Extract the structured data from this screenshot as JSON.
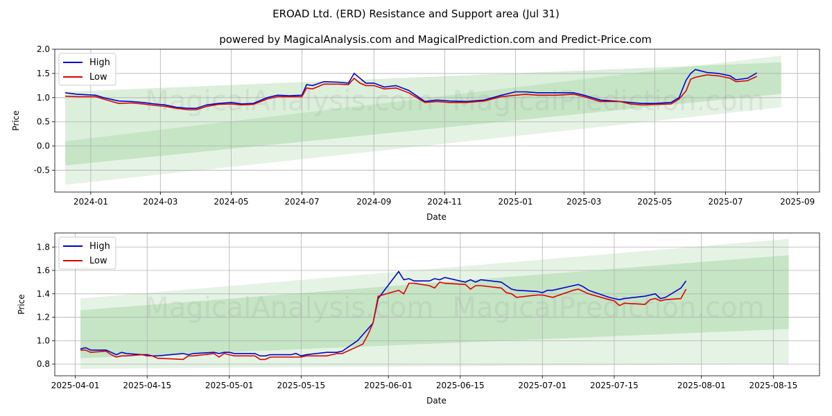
{
  "title": "EROAD Ltd. (ERD) Resistance and Support area (Jul 31)",
  "subtitle": "powered by MagicalAnalysis.com and MagicalPrediction.com and Predict-Price.com",
  "watermarks": [
    "MagicalAnalysis.com",
    "MagicalPrediction.com"
  ],
  "colors": {
    "high": "#0000cc",
    "low": "#dd0000",
    "band": "#2ca02c",
    "grid": "#b0b0b0"
  },
  "chart_data": [
    {
      "type": "line",
      "xlabel": "Date",
      "ylabel": "Price",
      "xlim": [
        "2023-12-01",
        "2025-09-20"
      ],
      "ylim": [
        -0.95,
        2.0
      ],
      "x_ticks": [
        "2024-01",
        "2024-03",
        "2024-05",
        "2024-07",
        "2024-09",
        "2024-11",
        "2025-01",
        "2025-03",
        "2025-05",
        "2025-07",
        "2025-09"
      ],
      "y_ticks": [
        -0.5,
        0.0,
        0.5,
        1.0,
        1.5,
        2.0
      ],
      "grid": true,
      "legend": "top-left",
      "bands": [
        {
          "x": [
            "2023-12-10",
            "2025-08-18"
          ],
          "lower": [
            -0.8,
            0.8
          ],
          "upper": [
            0.1,
            1.87
          ]
        },
        {
          "x": [
            "2023-12-10",
            "2025-08-18"
          ],
          "lower": [
            -0.4,
            1.08
          ],
          "upper": [
            1.12,
            1.73
          ]
        }
      ],
      "series": [
        {
          "name": "High",
          "x": [
            "2023-12-10",
            "2023-12-20",
            "2024-01-05",
            "2024-01-12",
            "2024-01-25",
            "2024-02-05",
            "2024-02-15",
            "2024-02-25",
            "2024-03-05",
            "2024-03-15",
            "2024-03-25",
            "2024-04-01",
            "2024-04-10",
            "2024-04-20",
            "2024-05-01",
            "2024-05-10",
            "2024-05-20",
            "2024-06-01",
            "2024-06-10",
            "2024-06-20",
            "2024-07-01",
            "2024-07-05",
            "2024-07-10",
            "2024-07-20",
            "2024-08-01",
            "2024-08-10",
            "2024-08-15",
            "2024-08-20",
            "2024-08-25",
            "2024-09-01",
            "2024-09-10",
            "2024-09-20",
            "2024-10-01",
            "2024-10-10",
            "2024-10-15",
            "2024-10-25",
            "2024-11-05",
            "2024-11-20",
            "2024-12-05",
            "2024-12-20",
            "2025-01-01",
            "2025-01-10",
            "2025-01-20",
            "2025-02-05",
            "2025-02-20",
            "2025-03-01",
            "2025-03-15",
            "2025-04-01",
            "2025-04-10",
            "2025-04-20",
            "2025-05-01",
            "2025-05-15",
            "2025-05-22",
            "2025-05-28",
            "2025-06-01",
            "2025-06-05",
            "2025-06-15",
            "2025-06-25",
            "2025-07-05",
            "2025-07-10",
            "2025-07-20",
            "2025-07-28"
          ],
          "values": [
            1.1,
            1.07,
            1.05,
            1.0,
            0.93,
            0.92,
            0.9,
            0.87,
            0.85,
            0.8,
            0.78,
            0.78,
            0.85,
            0.88,
            0.9,
            0.87,
            0.88,
            1.0,
            1.05,
            1.04,
            1.05,
            1.27,
            1.25,
            1.33,
            1.32,
            1.3,
            1.5,
            1.4,
            1.3,
            1.3,
            1.22,
            1.25,
            1.15,
            1.0,
            0.92,
            0.95,
            0.93,
            0.92,
            0.95,
            1.05,
            1.12,
            1.12,
            1.1,
            1.1,
            1.1,
            1.05,
            0.95,
            0.92,
            0.9,
            0.88,
            0.88,
            0.9,
            1.0,
            1.36,
            1.5,
            1.58,
            1.52,
            1.5,
            1.45,
            1.37,
            1.4,
            1.51
          ]
        },
        {
          "name": "Low",
          "x": [
            "2023-12-10",
            "2023-12-20",
            "2024-01-05",
            "2024-01-12",
            "2024-01-25",
            "2024-02-05",
            "2024-02-15",
            "2024-02-25",
            "2024-03-05",
            "2024-03-15",
            "2024-03-25",
            "2024-04-01",
            "2024-04-10",
            "2024-04-20",
            "2024-05-01",
            "2024-05-10",
            "2024-05-20",
            "2024-06-01",
            "2024-06-10",
            "2024-06-20",
            "2024-07-01",
            "2024-07-05",
            "2024-07-10",
            "2024-07-20",
            "2024-08-01",
            "2024-08-10",
            "2024-08-15",
            "2024-08-20",
            "2024-08-25",
            "2024-09-01",
            "2024-09-10",
            "2024-09-20",
            "2024-10-01",
            "2024-10-10",
            "2024-10-15",
            "2024-10-25",
            "2024-11-05",
            "2024-11-20",
            "2024-12-05",
            "2024-12-20",
            "2025-01-01",
            "2025-01-10",
            "2025-01-20",
            "2025-02-05",
            "2025-02-20",
            "2025-03-01",
            "2025-03-15",
            "2025-04-01",
            "2025-04-10",
            "2025-04-20",
            "2025-05-01",
            "2025-05-15",
            "2025-05-22",
            "2025-05-28",
            "2025-06-01",
            "2025-06-05",
            "2025-06-15",
            "2025-06-25",
            "2025-07-05",
            "2025-07-10",
            "2025-07-20",
            "2025-07-28"
          ],
          "values": [
            1.03,
            1.02,
            1.02,
            0.97,
            0.88,
            0.89,
            0.87,
            0.84,
            0.82,
            0.78,
            0.75,
            0.75,
            0.82,
            0.86,
            0.87,
            0.85,
            0.86,
            0.97,
            1.02,
            1.02,
            1.02,
            1.2,
            1.18,
            1.28,
            1.28,
            1.27,
            1.4,
            1.3,
            1.25,
            1.25,
            1.18,
            1.2,
            1.1,
            0.97,
            0.9,
            0.92,
            0.9,
            0.9,
            0.93,
            1.02,
            1.05,
            1.07,
            1.05,
            1.05,
            1.07,
            1.02,
            0.92,
            0.92,
            0.87,
            0.85,
            0.86,
            0.87,
            0.97,
            1.14,
            1.38,
            1.42,
            1.47,
            1.45,
            1.4,
            1.33,
            1.35,
            1.44
          ]
        }
      ]
    },
    {
      "type": "line",
      "xlabel": "Date",
      "ylabel": "Price",
      "xlim": [
        "2025-03-28",
        "2025-08-24"
      ],
      "ylim": [
        0.7,
        1.92
      ],
      "x_ticks": [
        "2025-04-01",
        "2025-04-15",
        "2025-05-01",
        "2025-05-15",
        "2025-06-01",
        "2025-06-15",
        "2025-07-01",
        "2025-07-15",
        "2025-08-01",
        "2025-08-15"
      ],
      "y_ticks": [
        0.8,
        1.0,
        1.2,
        1.4,
        1.6,
        1.8
      ],
      "grid": true,
      "legend": "top-left",
      "bands": [
        {
          "x": [
            "2025-04-02",
            "2025-08-18"
          ],
          "lower": [
            0.76,
            0.8
          ],
          "upper": [
            1.36,
            1.87
          ]
        },
        {
          "x": [
            "2025-04-02",
            "2025-08-18"
          ],
          "lower": [
            0.85,
            1.1
          ],
          "upper": [
            1.26,
            1.73
          ]
        }
      ],
      "series": [
        {
          "name": "High",
          "x": [
            "2025-04-02",
            "2025-04-03",
            "2025-04-04",
            "2025-04-07",
            "2025-04-08",
            "2025-04-09",
            "2025-04-10",
            "2025-04-11",
            "2025-04-14",
            "2025-04-15",
            "2025-04-16",
            "2025-04-17",
            "2025-04-22",
            "2025-04-23",
            "2025-04-24",
            "2025-04-28",
            "2025-04-29",
            "2025-04-30",
            "2025-05-01",
            "2025-05-02",
            "2025-05-06",
            "2025-05-07",
            "2025-05-08",
            "2025-05-09",
            "2025-05-13",
            "2025-05-14",
            "2025-05-15",
            "2025-05-16",
            "2025-05-20",
            "2025-05-22",
            "2025-05-23",
            "2025-05-26",
            "2025-05-27",
            "2025-05-28",
            "2025-05-29",
            "2025-05-30",
            "2025-06-03",
            "2025-06-04",
            "2025-06-05",
            "2025-06-06",
            "2025-06-09",
            "2025-06-10",
            "2025-06-11",
            "2025-06-12",
            "2025-06-16",
            "2025-06-17",
            "2025-06-18",
            "2025-06-19",
            "2025-06-23",
            "2025-06-24",
            "2025-06-25",
            "2025-06-26",
            "2025-06-30",
            "2025-07-01",
            "2025-07-02",
            "2025-07-03",
            "2025-07-07",
            "2025-07-08",
            "2025-07-09",
            "2025-07-10",
            "2025-07-14",
            "2025-07-15",
            "2025-07-16",
            "2025-07-17",
            "2025-07-21",
            "2025-07-22",
            "2025-07-23",
            "2025-07-24",
            "2025-07-25",
            "2025-07-28",
            "2025-07-29"
          ],
          "values": [
            0.93,
            0.94,
            0.92,
            0.92,
            0.9,
            0.88,
            0.9,
            0.89,
            0.88,
            0.88,
            0.87,
            0.87,
            0.89,
            0.88,
            0.89,
            0.9,
            0.89,
            0.9,
            0.9,
            0.89,
            0.89,
            0.87,
            0.87,
            0.88,
            0.88,
            0.89,
            0.87,
            0.88,
            0.9,
            0.9,
            0.91,
            1.0,
            1.05,
            1.1,
            1.15,
            1.36,
            1.59,
            1.52,
            1.53,
            1.51,
            1.51,
            1.53,
            1.52,
            1.54,
            1.5,
            1.52,
            1.5,
            1.52,
            1.5,
            1.47,
            1.44,
            1.43,
            1.42,
            1.41,
            1.43,
            1.43,
            1.47,
            1.48,
            1.46,
            1.43,
            1.37,
            1.36,
            1.35,
            1.36,
            1.38,
            1.39,
            1.4,
            1.36,
            1.37,
            1.45,
            1.51
          ]
        },
        {
          "name": "Low",
          "x": [
            "2025-04-02",
            "2025-04-03",
            "2025-04-04",
            "2025-04-07",
            "2025-04-08",
            "2025-04-09",
            "2025-04-10",
            "2025-04-11",
            "2025-04-14",
            "2025-04-15",
            "2025-04-16",
            "2025-04-17",
            "2025-04-22",
            "2025-04-23",
            "2025-04-24",
            "2025-04-28",
            "2025-04-29",
            "2025-04-30",
            "2025-05-01",
            "2025-05-02",
            "2025-05-06",
            "2025-05-07",
            "2025-05-08",
            "2025-05-09",
            "2025-05-13",
            "2025-05-14",
            "2025-05-15",
            "2025-05-16",
            "2025-05-20",
            "2025-05-22",
            "2025-05-23",
            "2025-05-26",
            "2025-05-27",
            "2025-05-28",
            "2025-05-29",
            "2025-05-30",
            "2025-06-03",
            "2025-06-04",
            "2025-06-05",
            "2025-06-06",
            "2025-06-09",
            "2025-06-10",
            "2025-06-11",
            "2025-06-12",
            "2025-06-16",
            "2025-06-17",
            "2025-06-18",
            "2025-06-19",
            "2025-06-23",
            "2025-06-24",
            "2025-06-25",
            "2025-06-26",
            "2025-06-30",
            "2025-07-01",
            "2025-07-02",
            "2025-07-03",
            "2025-07-07",
            "2025-07-08",
            "2025-07-09",
            "2025-07-10",
            "2025-07-14",
            "2025-07-15",
            "2025-07-16",
            "2025-07-17",
            "2025-07-21",
            "2025-07-22",
            "2025-07-23",
            "2025-07-24",
            "2025-07-25",
            "2025-07-28",
            "2025-07-29"
          ],
          "values": [
            0.92,
            0.92,
            0.9,
            0.91,
            0.88,
            0.86,
            0.87,
            0.87,
            0.88,
            0.87,
            0.87,
            0.85,
            0.84,
            0.87,
            0.87,
            0.89,
            0.86,
            0.89,
            0.88,
            0.87,
            0.87,
            0.84,
            0.84,
            0.86,
            0.86,
            0.86,
            0.86,
            0.87,
            0.87,
            0.89,
            0.89,
            0.95,
            0.97,
            1.05,
            1.15,
            1.38,
            1.43,
            1.4,
            1.49,
            1.49,
            1.47,
            1.45,
            1.5,
            1.49,
            1.48,
            1.44,
            1.47,
            1.47,
            1.45,
            1.41,
            1.4,
            1.37,
            1.39,
            1.39,
            1.38,
            1.37,
            1.43,
            1.44,
            1.42,
            1.4,
            1.35,
            1.34,
            1.3,
            1.32,
            1.31,
            1.35,
            1.36,
            1.34,
            1.35,
            1.36,
            1.44
          ]
        }
      ]
    }
  ]
}
